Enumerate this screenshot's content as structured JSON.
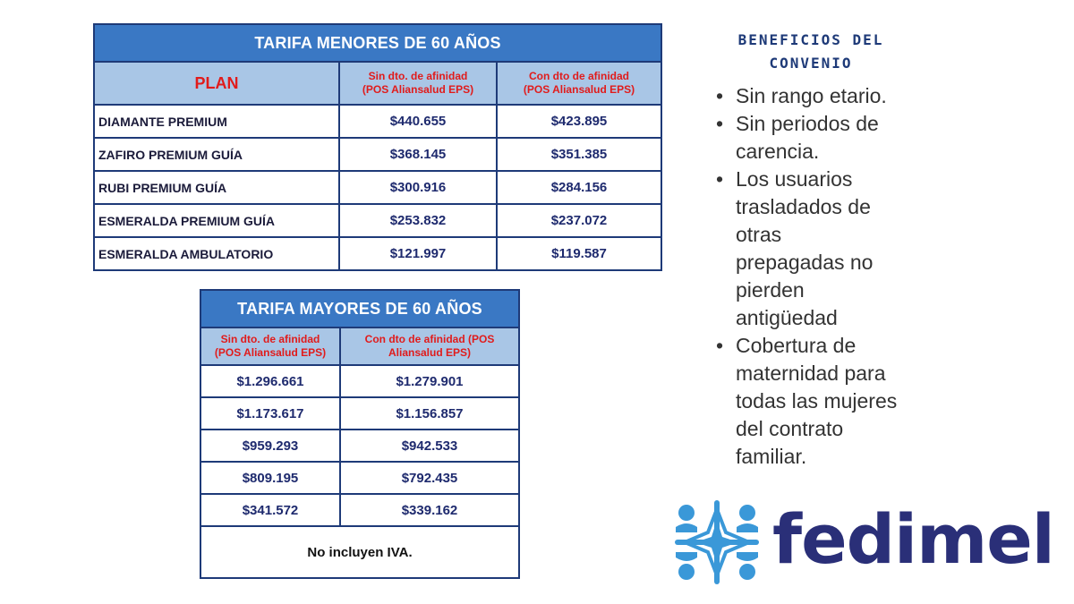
{
  "table_under60": {
    "title": "TARIFA MENORES DE 60 AÑOS",
    "headers": {
      "plan": "PLAN",
      "sin_dto_line1": "Sin dto. de afinidad",
      "sin_dto_line2": "(POS Aliansalud EPS)",
      "con_dto_line1": "Con dto de afinidad",
      "con_dto_line2": "(POS Aliansalud EPS)"
    },
    "rows": [
      {
        "plan": "DIAMANTE PREMIUM",
        "sin": "$440.655",
        "con": "$423.895"
      },
      {
        "plan": "ZAFIRO PREMIUM GUÍA",
        "sin": "$368.145",
        "con": "$351.385"
      },
      {
        "plan": "RUBI PREMIUM GUÍA",
        "sin": "$300.916",
        "con": "$284.156"
      },
      {
        "plan": "ESMERALDA PREMIUM GUÍA",
        "sin": "$253.832",
        "con": "$237.072"
      },
      {
        "plan": "ESMERALDA AMBULATORIO",
        "sin": "$121.997",
        "con": "$119.587"
      }
    ]
  },
  "table_over60": {
    "title": "TARIFA MAYORES DE 60 AÑOS",
    "headers": {
      "sin_dto_line1": "Sin dto. de afinidad",
      "sin_dto_line2": "(POS Aliansalud EPS)",
      "con_dto_line1": "Con dto de afinidad (POS",
      "con_dto_line2": "Aliansalud EPS)"
    },
    "rows": [
      {
        "sin": "$1.296.661",
        "con": "$1.279.901"
      },
      {
        "sin": "$1.173.617",
        "con": "$1.156.857"
      },
      {
        "sin": "$959.293",
        "con": "$942.533"
      },
      {
        "sin": "$809.195",
        "con": "$792.435"
      },
      {
        "sin": "$341.572",
        "con": "$339.162"
      }
    ],
    "note": "No incluyen IVA."
  },
  "benefits": {
    "title_line1": "BENEFICIOS DEL",
    "title_line2": "CONVENIO",
    "bullet": "•",
    "items": [
      [
        "Sin rango etario."
      ],
      [
        "Sin periodos de",
        "carencia."
      ],
      [
        "Los usuarios",
        "trasladados de",
        "otras",
        "prepagadas no",
        "pierden",
        "antigüedad"
      ],
      [
        "Cobertura de",
        "maternidad para",
        "todas las mujeres",
        "del contrato",
        "familiar."
      ]
    ]
  },
  "logo": {
    "text": "fedimel",
    "mark_icon": "fedimel-cross-logo-icon",
    "colors": {
      "text": "#2a2f78",
      "mark": "#3a98d8"
    }
  }
}
